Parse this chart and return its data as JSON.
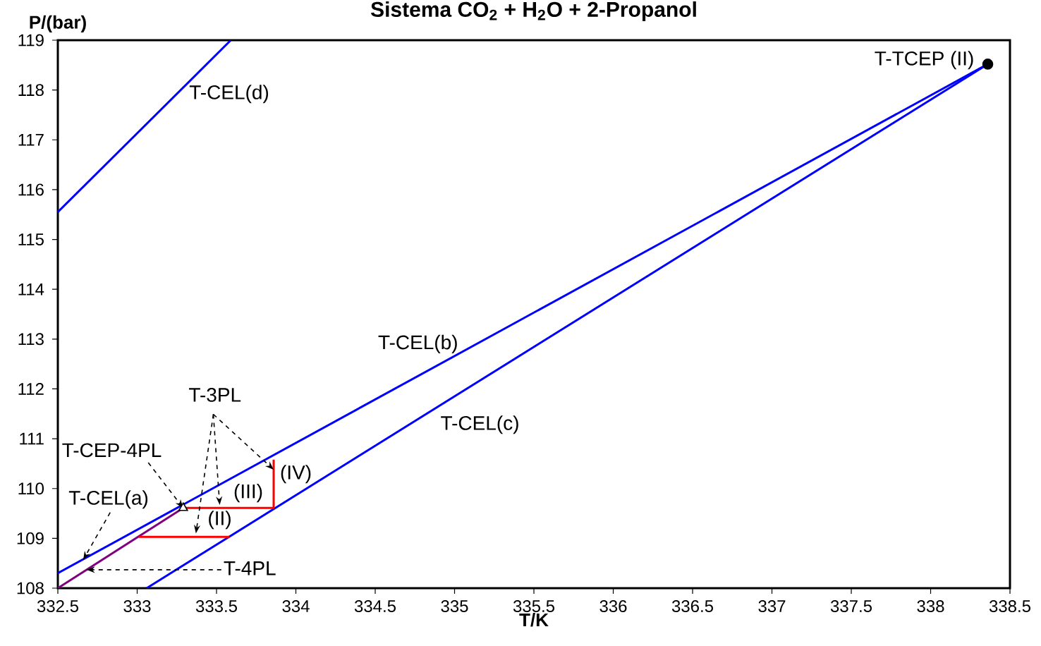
{
  "chart_data": {
    "type": "line",
    "title": "Sistema CO$_{2}$ + H$_{2}$O + 2-Propanol",
    "xlabel": "T/K",
    "ylabel": "P/(bar)",
    "xlim": [
      332.5,
      338.5
    ],
    "ylim": [
      108,
      119
    ],
    "xticks": [
      332.5,
      333,
      333.5,
      334,
      334.5,
      335,
      335.5,
      336,
      336.5,
      337,
      337.5,
      338,
      338.5
    ],
    "yticks": [
      108,
      109,
      110,
      111,
      112,
      113,
      114,
      115,
      116,
      117,
      118,
      119
    ],
    "grid": false,
    "series": [
      {
        "color": "#0000ff",
        "x": [
          332.5,
          333.59
        ],
        "values": [
          115.55,
          119.0
        ]
      },
      {
        "color": "#0000ff",
        "x": [
          332.5,
          338.36
        ],
        "values": [
          108.3,
          118.52
        ]
      },
      {
        "color": "#0000ff",
        "x": [
          333.06,
          338.36
        ],
        "values": [
          108.0,
          118.52
        ]
      },
      {
        "color": "#800080",
        "x": [
          332.5,
          333.29
        ],
        "values": [
          108.0,
          109.61
        ]
      },
      {
        "color": "#ff0000",
        "x": [
          333.01,
          333.58
        ],
        "values": [
          109.03,
          109.03
        ]
      },
      {
        "color": "#ff0000",
        "x": [
          333.29,
          333.86,
          333.86
        ],
        "values": [
          109.61,
          109.61,
          110.58
        ]
      },
      {
        "type": "scatter",
        "marker": "circle",
        "color": "#000000",
        "x": [
          338.36
        ],
        "values": [
          118.52
        ]
      },
      {
        "type": "scatter",
        "marker": "triangle",
        "color": "#000000",
        "x": [
          333.29
        ],
        "values": [
          109.61
        ]
      }
    ],
    "annotations": [
      {
        "text": "T-CEL(d)",
        "x": 333.25,
        "y": 117.92
      },
      {
        "text": "T-CEL(b)",
        "x": 334.77,
        "y": 112.21
      },
      {
        "text": "T-CEL(c)",
        "x": 335.16,
        "y": 112.17
      },
      {
        "text": "T-TCEP (II)",
        "x": 338.36,
        "y": 118.52
      },
      {
        "text": "T-3PL",
        "x": 333.86,
        "y": 110.38
      },
      {
        "text": "T-CEP-4PL",
        "x": 333.29,
        "y": 109.61
      },
      {
        "text": "T-CEL(a)",
        "x": 332.66,
        "y": 108.57
      },
      {
        "text": "T-4PL",
        "x": 332.68,
        "y": 108.37
      },
      {
        "text": "(IV)",
        "x": 333.86,
        "y": 110.2
      },
      {
        "text": "(III)",
        "x": 333.7,
        "y": 109.61
      },
      {
        "text": "(II)",
        "x": 333.52,
        "y": 109.03
      }
    ]
  }
}
